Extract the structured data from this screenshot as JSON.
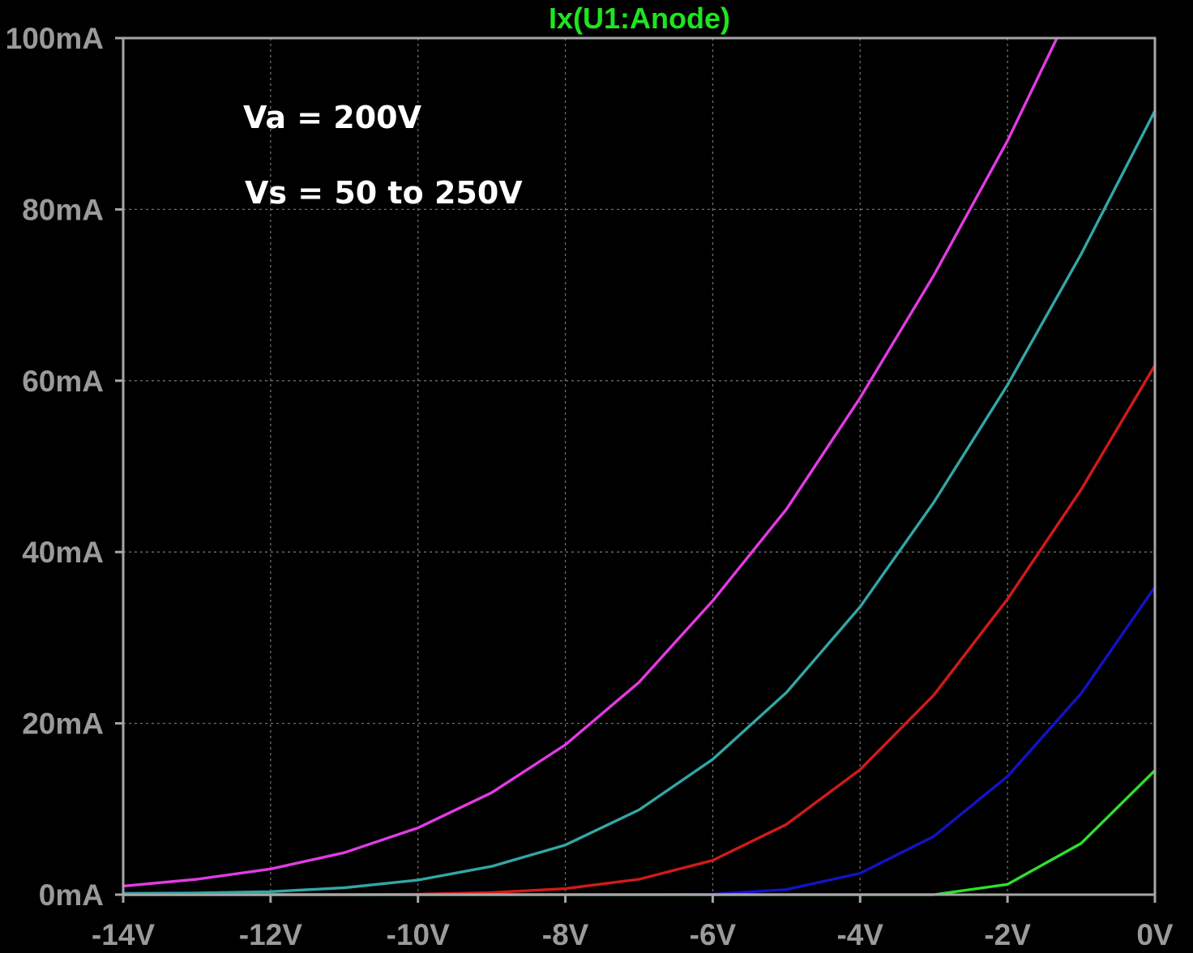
{
  "chart_data": {
    "type": "line",
    "title": "Ix(U1:Anode)",
    "title_color": "#1fe51f",
    "background": "#000000",
    "frame_color": "#a6a6a6",
    "grid": true,
    "xlim": [
      -14,
      0
    ],
    "ylim": [
      0,
      100
    ],
    "x_ticks": [
      -14,
      -12,
      -10,
      -8,
      -6,
      -4,
      -2,
      0
    ],
    "x_tick_labels": [
      "-14V",
      "-12V",
      "-10V",
      "-8V",
      "-6V",
      "-4V",
      "-2V",
      "0V"
    ],
    "y_ticks": [
      0,
      20,
      40,
      60,
      80,
      100
    ],
    "y_tick_labels": [
      "0mA",
      "20mA",
      "40mA",
      "60mA",
      "80mA",
      "100mA"
    ],
    "annotations": [
      "Va = 200V",
      "Vs = 50 to 250V"
    ],
    "x": [
      -14,
      -13,
      -12,
      -11,
      -10,
      -9,
      -8,
      -7,
      -6,
      -5,
      -4,
      -3,
      -2,
      -1,
      0
    ],
    "series": [
      {
        "color": "#e23be2",
        "x": [
          -14,
          -13,
          -12,
          -11,
          -10,
          -9,
          -8,
          -7,
          -6,
          -5,
          -4,
          -3,
          -2,
          -1.33
        ],
        "values": [
          1.0,
          1.8,
          3.0,
          4.9,
          7.8,
          11.9,
          17.5,
          24.8,
          34.3,
          45.0,
          58.0,
          72.3,
          88.0,
          100.0
        ]
      },
      {
        "color": "#33a6a6",
        "values": [
          0.15,
          0.2,
          0.35,
          0.8,
          1.7,
          3.3,
          5.8,
          9.9,
          15.8,
          23.6,
          33.6,
          45.8,
          59.5,
          74.8,
          91.5
        ]
      },
      {
        "color": "#d11a1a",
        "values": [
          0,
          0,
          0,
          0,
          0.05,
          0.25,
          0.7,
          1.8,
          4.0,
          8.2,
          14.6,
          23.3,
          34.5,
          47.3,
          61.8
        ]
      },
      {
        "color": "#1212c8",
        "values": [
          0,
          0,
          0,
          0,
          0,
          0,
          0,
          0,
          0.05,
          0.6,
          2.5,
          6.8,
          13.8,
          23.5,
          35.9
        ]
      },
      {
        "color": "#2ee02e",
        "values": [
          0,
          0,
          0,
          0,
          0,
          0,
          0,
          0,
          0,
          0,
          0,
          0,
          1.2,
          6.0,
          14.5
        ]
      }
    ]
  }
}
